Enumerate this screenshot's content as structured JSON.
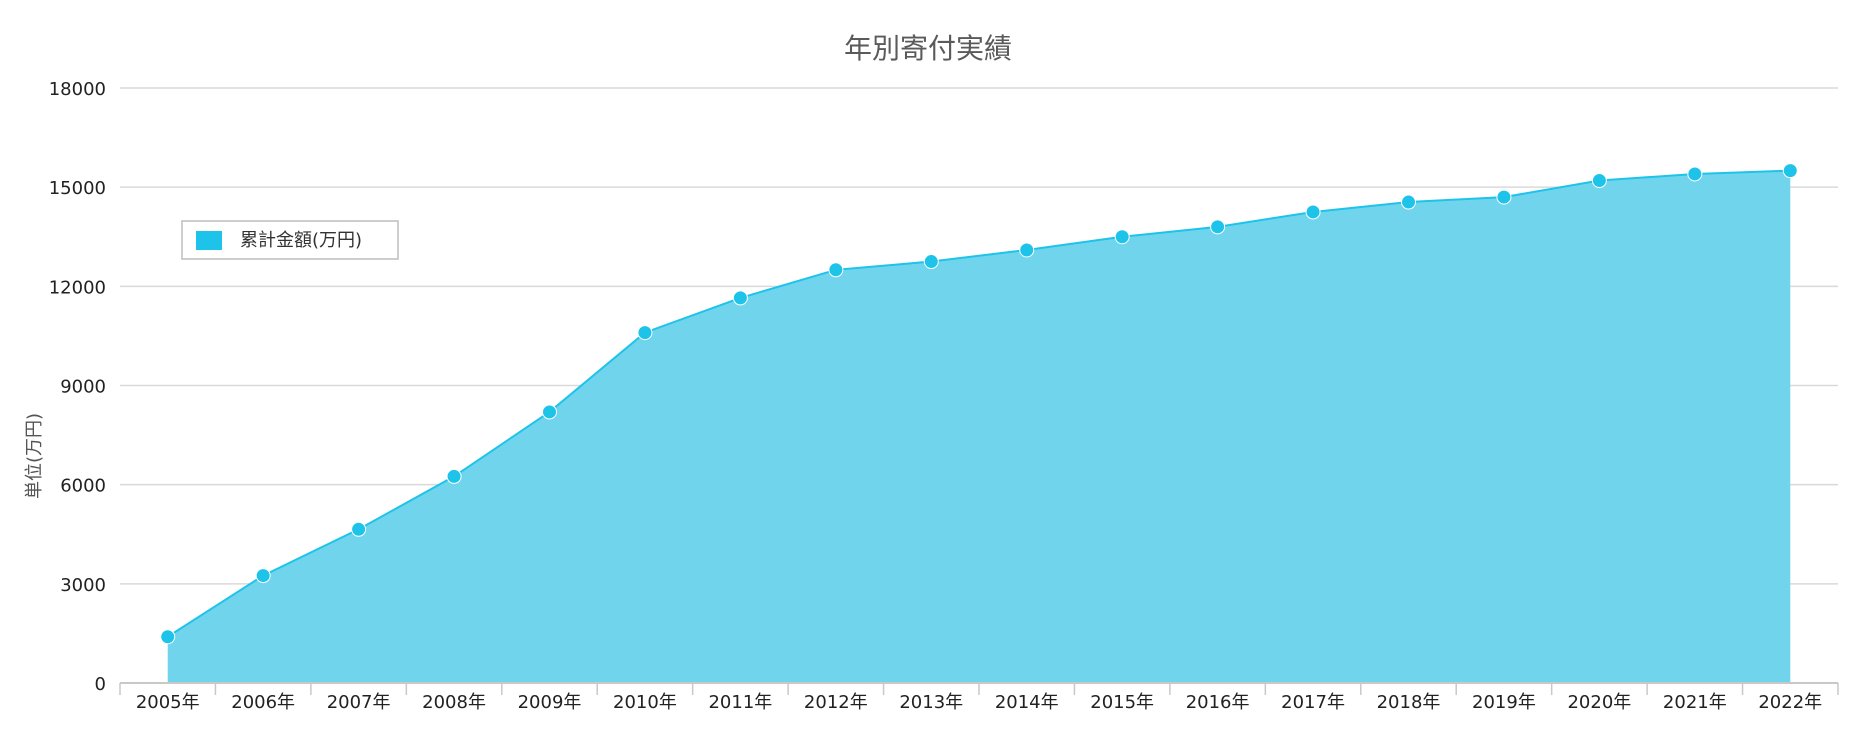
{
  "chart_data": {
    "type": "area",
    "title": "年別寄付実績",
    "ylabel": "単位(万円)",
    "xlabel": "",
    "ylim": [
      0,
      18000
    ],
    "yticks": [
      0,
      3000,
      6000,
      9000,
      12000,
      15000,
      18000
    ],
    "grid": true,
    "legend_position": "upper-left",
    "categories": [
      "2005年",
      "2006年",
      "2007年",
      "2008年",
      "2009年",
      "2010年",
      "2011年",
      "2012年",
      "2013年",
      "2014年",
      "2015年",
      "2016年",
      "2017年",
      "2018年",
      "2019年",
      "2020年",
      "2021年",
      "2022年"
    ],
    "series": [
      {
        "name": "累計金額(万円)",
        "color": "#1ec3ea",
        "fill": "#70d5ec",
        "values": [
          1400,
          3250,
          4650,
          6250,
          8200,
          10600,
          11650,
          12500,
          12750,
          13100,
          13500,
          13800,
          14250,
          14550,
          14700,
          15200,
          15400,
          15500
        ]
      }
    ]
  },
  "colors": {
    "grid": "#d9d9d9",
    "axis": "#c8c8c8",
    "text": "#222222",
    "title": "#5a5a5a"
  }
}
